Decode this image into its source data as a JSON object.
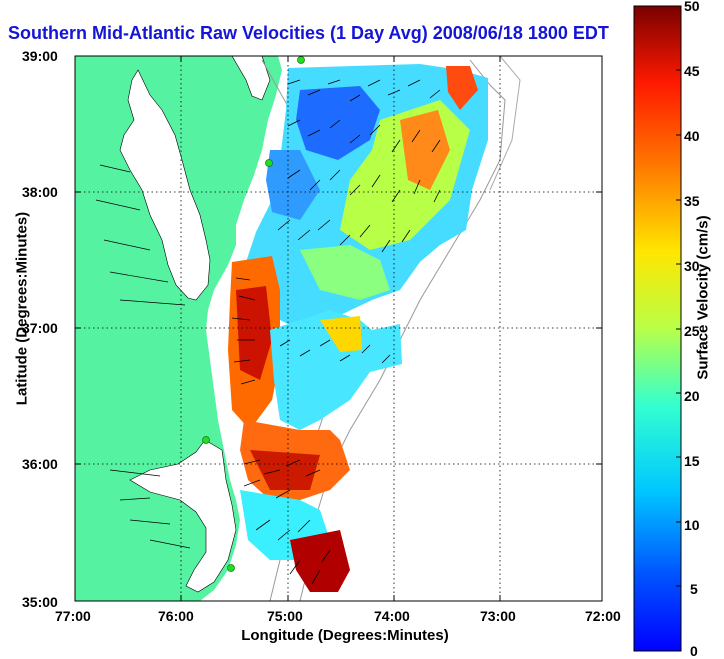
{
  "title": "Southern Mid-Atlantic Raw Velocities (1 Day Avg) 2008/06/18 1800 EDT",
  "axes": {
    "xlabel": "Longitude (Degrees:Minutes)",
    "ylabel": "Latitude (Degrees:Minutes)",
    "xticks": [
      "77:00",
      "76:00",
      "75:00",
      "74:00",
      "73:00",
      "72:00"
    ],
    "yticks": [
      "39:00",
      "38:00",
      "37:00",
      "36:00",
      "35:00"
    ],
    "grid": true,
    "grid_style": "dotted"
  },
  "colorbar": {
    "label": "Surface Velocity (cm/s)",
    "ticks": [
      "50",
      "45",
      "40",
      "35",
      "30",
      "25",
      "20",
      "15",
      "10",
      "5",
      "0"
    ],
    "range": [
      0,
      50
    ],
    "colormap": "jet"
  },
  "map": {
    "land_color": "#55f2a2",
    "water_color": "#ffffff",
    "station_color": "#22dd22",
    "stations": 4
  }
}
